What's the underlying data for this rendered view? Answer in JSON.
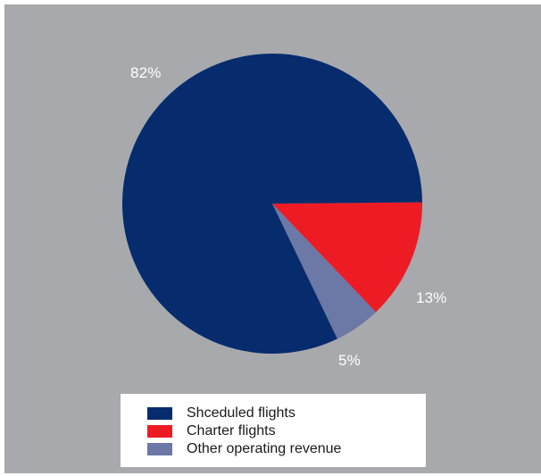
{
  "chart_data": {
    "type": "pie",
    "slices": [
      {
        "label": "Shceduled flights",
        "value": 82,
        "display": "82%",
        "color": "#062c6e"
      },
      {
        "label": "Charter flights",
        "value": 13,
        "display": "13%",
        "color": "#ed1c24"
      },
      {
        "label": "Other operating revenue",
        "value": 5,
        "display": "5%",
        "color": "#6c78a6"
      }
    ],
    "legend": "bottom",
    "background": "#a7a9ac"
  }
}
